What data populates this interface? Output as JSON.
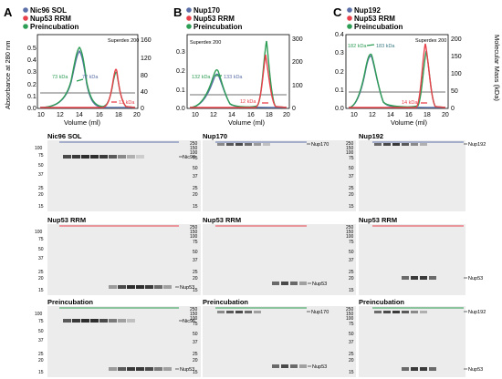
{
  "colors": {
    "blue": "#5b6fa8",
    "red": "#e8414b",
    "green": "#2e9d55",
    "teal": "#3c7d84",
    "gray_line": "#b8b8b8",
    "gel_bg": "#ececec"
  },
  "panels": [
    {
      "letter": "A",
      "legend": [
        "Nic96 SOL",
        "Nup53 RRM",
        "Preincubation"
      ],
      "superdex": "Superdex 200",
      "peak_labels": [
        "73 kDa",
        "72 kDa",
        "13 kDa"
      ],
      "gels": [
        {
          "title": "Nic96 SOL",
          "bands": [
            "Nic96"
          ]
        },
        {
          "title": "Nup53 RRM",
          "bands": [
            "Nup53"
          ]
        },
        {
          "title": "Preincubation",
          "bands": [
            "Nic96",
            "Nup53"
          ]
        }
      ]
    },
    {
      "letter": "B",
      "legend": [
        "Nup170",
        "Nup53 RRM",
        "Preincubation"
      ],
      "superdex": "Superdex 200",
      "peak_labels": [
        "132 kDa",
        "133 kDa",
        "12 kDa"
      ],
      "gels": [
        {
          "title": "Nup170",
          "bands": [
            "Nup170"
          ]
        },
        {
          "title": "Nup53 RRM",
          "bands": [
            "Nup53"
          ]
        },
        {
          "title": "Preincubation",
          "bands": [
            "Nup170",
            "Nup53"
          ]
        }
      ]
    },
    {
      "letter": "C",
      "legend": [
        "Nup192",
        "Nup53 RRM",
        "Preincubation"
      ],
      "superdex": "Superdex 200",
      "peak_labels": [
        "182 kDa",
        "183 kDa",
        "14 kDa"
      ],
      "gels": [
        {
          "title": "Nup192",
          "bands": [
            "Nup192"
          ]
        },
        {
          "title": "Nup53 RRM",
          "bands": [
            "Nup53"
          ]
        },
        {
          "title": "Preincubation",
          "bands": [
            "Nup192",
            "Nup53"
          ]
        }
      ]
    }
  ],
  "axes": {
    "ylabel_left": "Absorbance at 280 nm",
    "ylabel_right": "Molecular Mass (kDa)",
    "xlabel": "Volume (ml)"
  },
  "gel_markers_small": [
    "100",
    "75",
    "50",
    "37",
    "25",
    "20",
    "15"
  ],
  "gel_markers_large": [
    "250",
    "150",
    "100",
    "75",
    "50",
    "37",
    "25",
    "20",
    "15"
  ],
  "chart_data": [
    {
      "type": "line",
      "xlabel": "Volume (ml)",
      "ylabel": "Absorbance at 280 nm",
      "y2label": "Molecular Mass (kDa)",
      "xlim": [
        10,
        20
      ],
      "ylim": [
        0,
        0.6
      ],
      "y2lim": [
        0,
        160
      ],
      "x_ticks": [
        10,
        12,
        14,
        16,
        18,
        20
      ],
      "y_ticks": [
        0,
        0.1,
        0.2,
        0.3,
        0.4,
        0.5
      ],
      "y2_ticks": [
        0,
        40,
        80,
        120,
        160
      ],
      "series": [
        {
          "name": "Nic96 SOL",
          "peaks": [
            {
              "x": 13.9,
              "y": 0.44
            }
          ]
        },
        {
          "name": "Nup53 RRM",
          "peaks": [
            {
              "x": 17.4,
              "y": 0.26
            }
          ]
        },
        {
          "name": "Preincubation",
          "peaks": [
            {
              "x": 13.9,
              "y": 0.47
            },
            {
              "x": 17.4,
              "y": 0.24
            }
          ]
        }
      ]
    },
    {
      "type": "line",
      "xlabel": "Volume (ml)",
      "ylabel": "Absorbance at 280 nm",
      "y2label": "Molecular Mass (kDa)",
      "xlim": [
        9,
        20
      ],
      "ylim": [
        0,
        0.4
      ],
      "y2lim": [
        0,
        300
      ],
      "x_ticks": [
        10,
        12,
        14,
        16,
        18,
        20
      ],
      "y_ticks": [
        0,
        0.1,
        0.2,
        0.3
      ],
      "y2_ticks": [
        0,
        100,
        200,
        300
      ],
      "series": [
        {
          "name": "Nup170",
          "peaks": [
            {
              "x": 12.0,
              "y": 0.15
            }
          ]
        },
        {
          "name": "Nup53 RRM",
          "peaks": [
            {
              "x": 17.5,
              "y": 0.3
            }
          ]
        },
        {
          "name": "Preincubation",
          "peaks": [
            {
              "x": 12.0,
              "y": 0.16
            },
            {
              "x": 17.5,
              "y": 0.35
            }
          ]
        }
      ]
    },
    {
      "type": "line",
      "xlabel": "Volume (ml)",
      "ylabel": "Absorbance at 280 nm",
      "y2label": "Molecular Mass (kDa)",
      "xlim": [
        9,
        20
      ],
      "ylim": [
        0,
        0.4
      ],
      "y2lim": [
        0,
        200
      ],
      "x_ticks": [
        10,
        12,
        14,
        16,
        18,
        20
      ],
      "y_ticks": [
        0,
        0.1,
        0.2,
        0.3,
        0.4
      ],
      "y2_ticks": [
        0,
        50,
        100,
        150,
        200
      ],
      "series": [
        {
          "name": "Nup192",
          "peaks": [
            {
              "x": 11.3,
              "y": 0.28
            }
          ]
        },
        {
          "name": "Nup53 RRM",
          "peaks": [
            {
              "x": 17.6,
              "y": 0.34
            }
          ]
        },
        {
          "name": "Preincubation",
          "peaks": [
            {
              "x": 11.3,
              "y": 0.3
            },
            {
              "x": 17.6,
              "y": 0.3
            }
          ]
        }
      ]
    }
  ]
}
